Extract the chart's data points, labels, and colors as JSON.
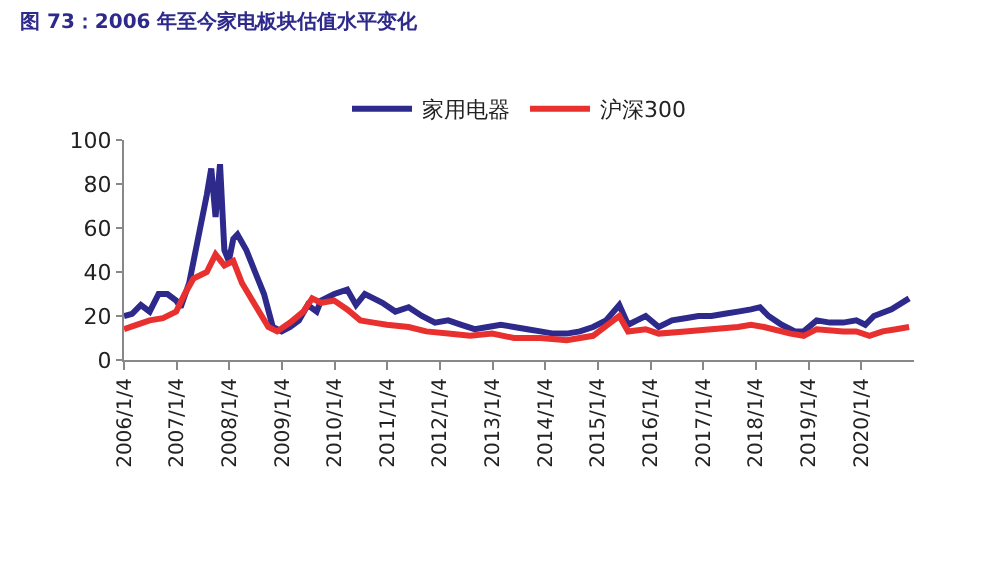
{
  "chart_data": {
    "type": "line",
    "title": "图 73：2006 年至今家电板块估值水平变化",
    "legend": "top",
    "marker": "none",
    "line_style": "solid",
    "xlim": [
      "2006-01-04",
      "2021-01-04"
    ],
    "xticks": [
      {
        "value": "2006-01-04",
        "label": "2006/1/4"
      },
      {
        "value": "2007-01-04",
        "label": "2007/1/4"
      },
      {
        "value": "2008-01-04",
        "label": "2008/1/4"
      },
      {
        "value": "2009-01-04",
        "label": "2009/1/4"
      },
      {
        "value": "2010-01-04",
        "label": "2010/1/4"
      },
      {
        "value": "2011-01-04",
        "label": "2011/1/4"
      },
      {
        "value": "2012-01-04",
        "label": "2012/1/4"
      },
      {
        "value": "2013-01-04",
        "label": "2013/1/4"
      },
      {
        "value": "2014-01-04",
        "label": "2014/1/4"
      },
      {
        "value": "2015-01-04",
        "label": "2015/1/4"
      },
      {
        "value": "2016-01-04",
        "label": "2016/1/4"
      },
      {
        "value": "2017-01-04",
        "label": "2017/1/4"
      },
      {
        "value": "2018-01-04",
        "label": "2018/1/4"
      },
      {
        "value": "2019-01-04",
        "label": "2019/1/4"
      },
      {
        "value": "2020-01-04",
        "label": "2020/1/4"
      }
    ],
    "ylim": [
      0,
      100
    ],
    "yticks": [
      0,
      20,
      40,
      60,
      80,
      100
    ],
    "series": [
      {
        "name": "家用电器",
        "color": "#2e2a8c",
        "x": [
          "2006-01-04",
          "2006-03",
          "2006-05",
          "2006-07",
          "2006-09",
          "2006-11",
          "2007-01",
          "2007-02",
          "2007-04",
          "2007-06",
          "2007-08",
          "2007-09",
          "2007-10",
          "2007-11",
          "2007-12",
          "2008-01",
          "2008-02",
          "2008-03",
          "2008-05",
          "2008-07",
          "2008-09",
          "2008-11",
          "2009-01",
          "2009-03",
          "2009-05",
          "2009-07",
          "2009-09",
          "2009-10",
          "2010-01",
          "2010-04",
          "2010-06",
          "2010-08",
          "2010-10",
          "2010-12",
          "2011-03",
          "2011-06",
          "2011-09",
          "2011-12",
          "2012-03",
          "2012-06",
          "2012-09",
          "2012-12",
          "2013-03",
          "2013-06",
          "2013-09",
          "2013-12",
          "2014-03",
          "2014-06",
          "2014-09",
          "2014-12",
          "2015-03",
          "2015-06",
          "2015-08",
          "2015-10",
          "2015-12",
          "2016-03",
          "2016-06",
          "2016-09",
          "2016-12",
          "2017-03",
          "2017-06",
          "2017-09",
          "2017-12",
          "2018-02",
          "2018-04",
          "2018-07",
          "2018-10",
          "2018-12",
          "2019-03",
          "2019-06",
          "2019-09",
          "2019-12",
          "2020-02",
          "2020-04",
          "2020-08",
          "2020-12"
        ],
        "values": [
          20,
          21,
          25,
          22,
          30,
          30,
          27,
          24,
          35,
          55,
          75,
          87,
          65,
          89,
          50,
          45,
          55,
          57,
          50,
          40,
          30,
          15,
          13,
          15,
          18,
          25,
          22,
          27,
          30,
          32,
          25,
          30,
          28,
          26,
          22,
          24,
          20,
          17,
          18,
          16,
          14,
          15,
          16,
          15,
          14,
          13,
          12,
          12,
          13,
          15,
          18,
          25,
          16,
          18,
          20,
          15,
          18,
          19,
          20,
          20,
          21,
          22,
          23,
          24,
          20,
          16,
          13,
          13,
          18,
          17,
          17,
          18,
          16,
          20,
          23,
          28
        ]
      },
      {
        "name": "沪深300",
        "color": "#e8302f",
        "x": [
          "2006-01-04",
          "2006-04",
          "2006-07",
          "2006-10",
          "2007-01",
          "2007-03",
          "2007-05",
          "2007-08",
          "2007-10",
          "2007-12",
          "2008-02",
          "2008-04",
          "2008-07",
          "2008-10",
          "2008-12",
          "2009-03",
          "2009-06",
          "2009-08",
          "2009-10",
          "2010-01",
          "2010-04",
          "2010-07",
          "2010-10",
          "2011-01",
          "2011-06",
          "2011-10",
          "2012-03",
          "2012-08",
          "2013-01",
          "2013-06",
          "2013-12",
          "2014-06",
          "2014-12",
          "2015-04",
          "2015-06",
          "2015-08",
          "2015-12",
          "2016-03",
          "2016-09",
          "2017-03",
          "2017-09",
          "2017-12",
          "2018-03",
          "2018-09",
          "2018-12",
          "2019-03",
          "2019-09",
          "2019-12",
          "2020-03",
          "2020-06",
          "2020-09",
          "2020-12"
        ],
        "values": [
          14,
          16,
          18,
          19,
          22,
          30,
          37,
          40,
          48,
          43,
          45,
          35,
          25,
          15,
          13,
          17,
          22,
          28,
          26,
          27,
          23,
          18,
          17,
          16,
          15,
          13,
          12,
          11,
          12,
          10,
          10,
          9,
          11,
          17,
          20,
          13,
          14,
          12,
          13,
          14,
          15,
          16,
          15,
          12,
          11,
          14,
          13,
          13,
          11,
          13,
          14,
          15
        ]
      }
    ]
  }
}
